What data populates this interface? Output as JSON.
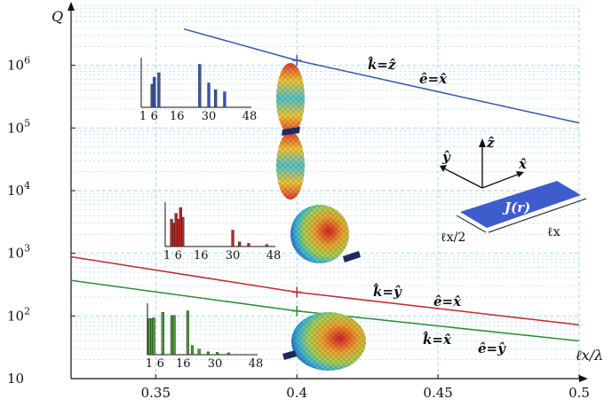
{
  "chart_data": {
    "type": "line",
    "title": "",
    "xlabel": "ℓx/λ",
    "ylabel": "Q",
    "xlim": [
      0.32,
      0.5
    ],
    "ylim": [
      10,
      10000000
    ],
    "yscale": "log",
    "grid": true,
    "x_ticks": [
      "0.35",
      "0.4",
      "0.45",
      "0.5"
    ],
    "x_tick_values": [
      0.35,
      0.4,
      0.45,
      0.5
    ],
    "y_ticks": [
      {
        "base": "10",
        "exp": "",
        "value": 10
      },
      {
        "base": "10",
        "exp": "2",
        "value": 100
      },
      {
        "base": "10",
        "exp": "3",
        "value": 1000
      },
      {
        "base": "10",
        "exp": "4",
        "value": 10000
      },
      {
        "base": "10",
        "exp": "5",
        "value": 100000
      },
      {
        "base": "10",
        "exp": "6",
        "value": 1000000
      }
    ],
    "series": [
      {
        "color": "#3a55a8",
        "x": [
          0.36,
          0.4,
          0.5
        ],
        "y": [
          3800000,
          1200000,
          120000
        ],
        "marker_x": 0.4,
        "marker_y": 1200000
      },
      {
        "color": "#c0282f",
        "x": [
          0.32,
          0.4,
          0.5
        ],
        "y": [
          880,
          240,
          72
        ],
        "marker_x": 0.4,
        "marker_y": 240
      },
      {
        "color": "#2c8a3a",
        "x": [
          0.32,
          0.4,
          0.5
        ],
        "y": [
          370,
          120,
          40
        ],
        "marker_x": 0.4,
        "marker_y": 120
      }
    ],
    "annotations": [
      {
        "k": "k̂=ẑ",
        "e": "ê=x̂"
      },
      {
        "k": "k̂=ŷ",
        "e": "ê=x̂"
      },
      {
        "k": "k̂=x̂",
        "e": "ê=ŷ"
      }
    ],
    "insets": [
      {
        "color": "#3a55a8",
        "tick_labels": [
          "1",
          "6",
          "16",
          "30",
          "48"
        ],
        "tick_values": [
          1,
          6,
          16,
          30,
          48
        ],
        "bars": [
          {
            "n": 5,
            "v": 0.52
          },
          {
            "n": 6,
            "v": 0.68
          },
          {
            "n": 8,
            "v": 0.78
          },
          {
            "n": 26,
            "v": 0.97
          },
          {
            "n": 30,
            "v": 0.55
          },
          {
            "n": 33,
            "v": 0.4
          },
          {
            "n": 37,
            "v": 0.35
          }
        ]
      },
      {
        "color": "#b82a26",
        "tick_labels": [
          "1",
          "6",
          "16",
          "30",
          "48"
        ],
        "tick_values": [
          1,
          6,
          16,
          30,
          48
        ],
        "bars": [
          {
            "n": 3,
            "v": 0.7
          },
          {
            "n": 4,
            "v": 0.6
          },
          {
            "n": 5,
            "v": 0.85
          },
          {
            "n": 6,
            "v": 0.7
          },
          {
            "n": 7,
            "v": 1.0
          },
          {
            "n": 8,
            "v": 0.75
          },
          {
            "n": 30,
            "v": 0.42
          },
          {
            "n": 33,
            "v": 0.12
          },
          {
            "n": 37,
            "v": 0.08
          },
          {
            "n": 45,
            "v": 0.05
          }
        ]
      },
      {
        "color": "#4f9a3a",
        "tick_labels": [
          "1",
          "6",
          "16",
          "30",
          "48"
        ],
        "tick_values": [
          1,
          6,
          16,
          30,
          48
        ],
        "bars": [
          {
            "n": 1,
            "v": 0.78
          },
          {
            "n": 2,
            "v": 0.78
          },
          {
            "n": 3,
            "v": 0.8
          },
          {
            "n": 7,
            "v": 0.92
          },
          {
            "n": 11,
            "v": 0.85
          },
          {
            "n": 12,
            "v": 0.85
          },
          {
            "n": 18,
            "v": 0.95
          },
          {
            "n": 20,
            "v": 0.2
          },
          {
            "n": 23,
            "v": 0.12
          },
          {
            "n": 27,
            "v": 0.06
          },
          {
            "n": 31,
            "v": 0.05
          },
          {
            "n": 36,
            "v": 0.04
          }
        ]
      }
    ],
    "geometry": {
      "axes": [
        "ŷ",
        "ẑ",
        "x̂"
      ],
      "current_label": "J(r)",
      "len_half": "ℓx/2",
      "len_full": "ℓx"
    }
  }
}
